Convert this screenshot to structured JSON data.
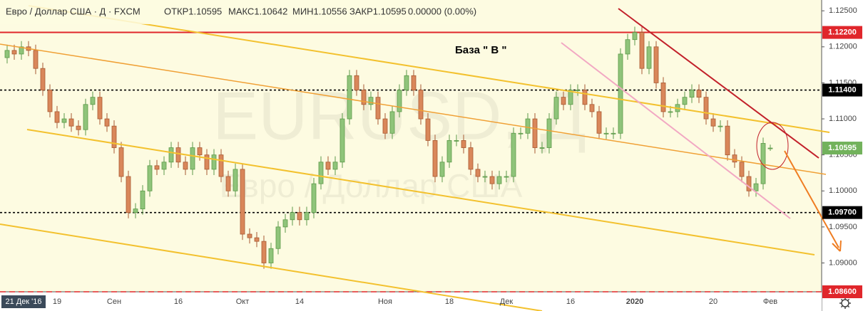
{
  "chart_data": {
    "type": "candlestick",
    "title": "Евро / Доллар США · Д · FXCM",
    "stats": [
      "ОТКР1.10595",
      "МАКС1.10642",
      "МИН1.10556",
      "ЗАКР1.10595",
      "0.00000 (0.00%)"
    ],
    "watermark": [
      "EURUSD, Д",
      "Евро / Доллар США"
    ],
    "annotation": "База  \" В \"",
    "cursor_label": "21 Дек '16",
    "up_color": "#8fc47a",
    "down_color": "#d9875a",
    "categories": [
      null,
      null,
      null,
      null,
      null,
      null,
      null,
      "19",
      null,
      null,
      null,
      null,
      null,
      null,
      null,
      "Сен",
      null,
      null,
      null,
      null,
      null,
      null,
      null,
      null,
      "16",
      null,
      null,
      null,
      null,
      null,
      null,
      null,
      null,
      "Окт",
      null,
      null,
      null,
      null,
      null,
      null,
      null,
      "14",
      null,
      null,
      null,
      null,
      null,
      null,
      null,
      null,
      null,
      null,
      null,
      "Ноя",
      null,
      null,
      null,
      null,
      null,
      null,
      null,
      null,
      "18",
      null,
      null,
      null,
      null,
      null,
      null,
      null,
      "Дек",
      null,
      null,
      null,
      null,
      null,
      null,
      null,
      null,
      "16",
      null,
      null,
      null,
      null,
      null,
      null,
      null,
      null,
      "2020",
      null,
      null,
      null,
      null,
      null,
      null,
      null,
      null,
      null,
      null,
      "20",
      null,
      null,
      null,
      null,
      null,
      null,
      null,
      "Фев"
    ],
    "open": [
      1.1185,
      1.1195,
      1.119,
      1.12,
      1.1195,
      1.117,
      1.114,
      1.111,
      1.1095,
      1.11,
      1.109,
      1.1085,
      1.112,
      1.113,
      1.11,
      1.109,
      1.106,
      1.102,
      1.097,
      1.0975,
      1.1,
      1.1035,
      1.103,
      1.104,
      1.106,
      1.104,
      1.103,
      1.106,
      1.105,
      1.103,
      1.105,
      1.102,
      1.1,
      1.103,
      1.094,
      1.0935,
      1.093,
      1.09,
      1.092,
      1.095,
      1.096,
      1.097,
      1.096,
      1.097,
      1.101,
      1.104,
      1.103,
      1.104,
      1.11,
      1.116,
      1.114,
      1.112,
      1.113,
      1.11,
      1.108,
      1.111,
      1.114,
      1.116,
      1.114,
      1.11,
      1.107,
      1.102,
      1.104,
      1.107,
      1.107,
      1.106,
      1.103,
      1.102,
      1.102,
      1.101,
      1.102,
      1.102,
      1.108,
      1.108,
      1.11,
      1.106,
      1.106,
      1.11,
      1.113,
      1.112,
      1.114,
      1.114,
      1.112,
      1.111,
      1.108,
      1.108,
      1.108,
      1.119,
      1.121,
      1.122,
      1.117,
      1.12,
      1.115,
      1.111,
      1.111,
      1.112,
      1.113,
      1.114,
      1.113,
      1.11,
      1.109,
      1.109,
      1.105,
      1.104,
      1.102,
      1.1,
      1.101,
      1.10595
    ],
    "high": [
      1.1203,
      1.1203,
      1.1208,
      1.1208,
      1.1203,
      1.1178,
      1.1148,
      1.1118,
      1.1108,
      1.1108,
      1.1098,
      1.1128,
      1.1138,
      1.1138,
      1.1108,
      1.1098,
      1.1068,
      1.1028,
      1.0983,
      1.1008,
      1.1043,
      1.1043,
      1.1048,
      1.1068,
      1.1068,
      1.1048,
      1.1068,
      1.1068,
      1.1058,
      1.1058,
      1.1058,
      1.1028,
      1.1038,
      1.1038,
      1.0948,
      1.0943,
      1.0938,
      1.0928,
      1.0958,
      1.0968,
      1.0978,
      1.0978,
      1.0978,
      1.1018,
      1.1048,
      1.1048,
      1.1048,
      1.1108,
      1.1168,
      1.1168,
      1.1148,
      1.1138,
      1.1138,
      1.1108,
      1.1118,
      1.1148,
      1.1168,
      1.1168,
      1.1148,
      1.1108,
      1.1078,
      1.1048,
      1.1078,
      1.1078,
      1.1078,
      1.1068,
      1.1038,
      1.1028,
      1.1028,
      1.1028,
      1.1028,
      1.1088,
      1.1088,
      1.1108,
      1.1108,
      1.1068,
      1.1108,
      1.1138,
      1.1138,
      1.1148,
      1.1148,
      1.1148,
      1.1128,
      1.1118,
      1.1088,
      1.1088,
      1.1198,
      1.1218,
      1.1228,
      1.1228,
      1.1208,
      1.1208,
      1.1158,
      1.1118,
      1.1128,
      1.1138,
      1.1148,
      1.1148,
      1.1138,
      1.1108,
      1.1098,
      1.1098,
      1.1058,
      1.1048,
      1.1028,
      1.1018,
      1.1074,
      1.10642
    ],
    "low": [
      1.1177,
      1.1182,
      1.1182,
      1.1187,
      1.1162,
      1.1132,
      1.1102,
      1.1087,
      1.1087,
      1.1082,
      1.1077,
      1.1077,
      1.1112,
      1.1092,
      1.1082,
      1.1052,
      1.1012,
      1.0962,
      1.0962,
      1.0967,
      1.0992,
      1.1022,
      1.1022,
      1.1032,
      1.1032,
      1.1022,
      1.1022,
      1.1042,
      1.1022,
      1.1022,
      1.1012,
      1.0992,
      1.0992,
      1.0932,
      1.0927,
      1.0922,
      1.0892,
      1.0892,
      1.0912,
      1.0942,
      1.0952,
      1.0952,
      1.0952,
      1.0962,
      1.1002,
      1.1022,
      1.1022,
      1.1032,
      1.1092,
      1.1132,
      1.1112,
      1.1112,
      1.1092,
      1.1072,
      1.1072,
      1.1102,
      1.1132,
      1.1132,
      1.1092,
      1.1062,
      1.1012,
      1.1012,
      1.1032,
      1.1062,
      1.1052,
      1.1022,
      1.1012,
      1.1012,
      1.1002,
      1.1002,
      1.1012,
      1.1012,
      1.1072,
      1.1072,
      1.1052,
      1.1052,
      1.1052,
      1.1092,
      1.1112,
      1.1112,
      1.1132,
      1.1112,
      1.1102,
      1.1072,
      1.1072,
      1.1072,
      1.1072,
      1.1182,
      1.1202,
      1.1162,
      1.1162,
      1.1142,
      1.1102,
      1.1102,
      1.1102,
      1.1112,
      1.1122,
      1.1122,
      1.1092,
      1.1082,
      1.1082,
      1.1042,
      1.1032,
      1.1012,
      1.0992,
      1.0992,
      1.1002,
      1.10556
    ],
    "close": [
      1.1195,
      1.119,
      1.12,
      1.1195,
      1.117,
      1.114,
      1.111,
      1.1095,
      1.11,
      1.109,
      1.1085,
      1.112,
      1.113,
      1.11,
      1.109,
      1.106,
      1.102,
      1.097,
      1.0975,
      1.1,
      1.1035,
      1.103,
      1.104,
      1.106,
      1.104,
      1.103,
      1.106,
      1.105,
      1.103,
      1.105,
      1.102,
      1.1,
      1.103,
      1.094,
      1.0935,
      1.093,
      1.09,
      1.092,
      1.095,
      1.096,
      1.097,
      1.096,
      1.097,
      1.101,
      1.104,
      1.103,
      1.104,
      1.11,
      1.116,
      1.114,
      1.112,
      1.113,
      1.11,
      1.108,
      1.111,
      1.114,
      1.116,
      1.114,
      1.11,
      1.107,
      1.102,
      1.104,
      1.107,
      1.107,
      1.106,
      1.103,
      1.102,
      1.102,
      1.101,
      1.102,
      1.102,
      1.108,
      1.108,
      1.11,
      1.106,
      1.106,
      1.11,
      1.113,
      1.112,
      1.114,
      1.114,
      1.112,
      1.111,
      1.108,
      1.108,
      1.108,
      1.119,
      1.121,
      1.122,
      1.117,
      1.12,
      1.115,
      1.111,
      1.111,
      1.112,
      1.113,
      1.114,
      1.113,
      1.11,
      1.109,
      1.109,
      1.105,
      1.104,
      1.102,
      1.1,
      1.101,
      1.1066,
      1.10595
    ],
    "ylim": [
      1.086,
      1.1265
    ],
    "yticks": [
      {
        "value": 1.125,
        "label": "1.12500"
      },
      {
        "value": 1.12,
        "label": "1.12000"
      },
      {
        "value": 1.115,
        "label": "1.11500"
      },
      {
        "value": 1.11,
        "label": "1.11000"
      },
      {
        "value": 1.105,
        "label": "1.10500"
      },
      {
        "value": 1.1,
        "label": "1.10000"
      },
      {
        "value": 1.095,
        "label": "1.09500"
      },
      {
        "value": 1.09,
        "label": "1.09000"
      }
    ],
    "price_lines": [
      {
        "value": 1.122,
        "label": "1.12200",
        "color": "#e0262b",
        "style": "solid"
      },
      {
        "value": 1.114,
        "label": "1.11400",
        "color": "#000000",
        "style": "dashed"
      },
      {
        "value": 1.10595,
        "label": "1.10595",
        "color": "#72b25c",
        "style": "none"
      },
      {
        "value": 1.097,
        "label": "1.09700",
        "color": "#000000",
        "style": "dashed"
      },
      {
        "value": 1.086,
        "label": "1.08600",
        "color": "#e0262b",
        "style": "dashed"
      }
    ]
  }
}
